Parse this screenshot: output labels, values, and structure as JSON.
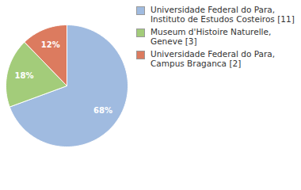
{
  "chart_data": {
    "type": "pie",
    "categories": [
      "Universidade Federal do Para, Instituto de Estudos Costeiros [11]",
      "Museum d'Histoire Naturelle, Geneve [3]",
      "Universidade Federal do Para, Campus Braganca [2]"
    ],
    "values": [
      68,
      18,
      12
    ],
    "value_labels": [
      "68%",
      "18%",
      "12%"
    ],
    "colors": [
      "#a0bbe0",
      "#a3cc7a",
      "#dc7b5f"
    ],
    "data_labels": true,
    "legend": "top-right"
  }
}
